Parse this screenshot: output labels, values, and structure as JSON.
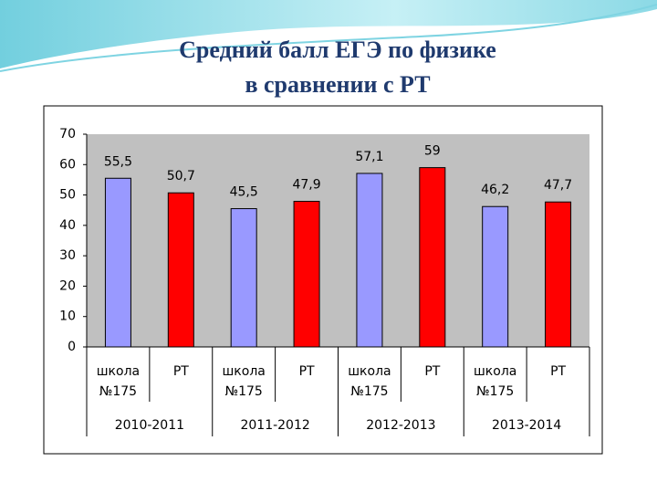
{
  "chart_data": {
    "type": "bar",
    "title": [
      "Средний балл ЕГЭ по физике",
      "в сравнении с РТ"
    ],
    "categories": [
      "школа №175",
      "РТ",
      "школа №175",
      "РТ",
      "школа №175",
      "РТ",
      "школа №175",
      "РТ"
    ],
    "groups": [
      "2010-2011",
      "2011-2012",
      "2012-2013",
      "2013-2014"
    ],
    "values": [
      55.5,
      50.7,
      45.5,
      47.9,
      57.1,
      59,
      46.2,
      47.7
    ],
    "value_labels": [
      "55,5",
      "50,7",
      "45,5",
      "47,9",
      "57,1",
      "59",
      "46,2",
      "47,7"
    ],
    "colors": [
      "#9999ff",
      "#ff0000",
      "#9999ff",
      "#ff0000",
      "#9999ff",
      "#ff0000",
      "#9999ff",
      "#ff0000"
    ],
    "ylim": [
      0,
      70
    ],
    "yticks": [
      0,
      10,
      20,
      30,
      40,
      50,
      60,
      70
    ],
    "grid": false,
    "plot_background": "#c0c0c0"
  }
}
